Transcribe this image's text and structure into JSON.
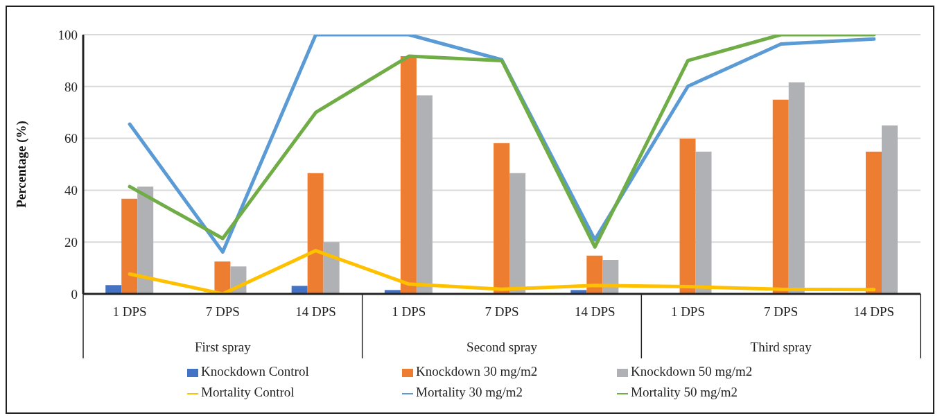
{
  "chart_data": {
    "type": "bar",
    "ylabel": "Percentage (%)",
    "categories": [
      "1 DPS",
      "7 DPS",
      "14 DPS",
      "1 DPS",
      "7 DPS",
      "14 DPS",
      "1 DPS",
      "7 DPS",
      "14 DPS"
    ],
    "annotations": [
      "First spray",
      "Second spray",
      "Third spray"
    ],
    "series": [
      {
        "name": "Knockdown Control",
        "color": "#4472c4",
        "values": [
          3.4,
          0,
          3.1,
          1.5,
          0,
          1.5,
          0,
          0,
          0
        ]
      },
      {
        "name": "Knockdown 30 mg/m2",
        "color": "#ed7d31",
        "values": [
          36.7,
          12.5,
          46.6,
          91.7,
          58.2,
          14.8,
          59.9,
          74.9,
          54.9
        ]
      },
      {
        "name": "Knockdown 50 mg/m2",
        "color": "#b0b1b4",
        "values": [
          41.4,
          10.6,
          20,
          76.6,
          46.6,
          13.1,
          54.9,
          81.6,
          65
        ]
      },
      {
        "name": "Mortality Control",
        "type": "line",
        "color": "#ffc000",
        "values": [
          7.7,
          0,
          16.7,
          3.8,
          1.8,
          3.3,
          2.8,
          1.8,
          1.7
        ]
      },
      {
        "name": "Mortality 30 mg/m2",
        "type": "line",
        "color": "#5b9bd5",
        "values": [
          65.5,
          16.2,
          100,
          100,
          90.3,
          20.9,
          80.1,
          96.4,
          98.3
        ]
      },
      {
        "name": "Mortality 50 mg/m2",
        "type": "line",
        "color": "#70ad47",
        "values": [
          41.4,
          21.4,
          70,
          91.7,
          90,
          18.1,
          90,
          100,
          100
        ]
      }
    ],
    "ylim": [
      0,
      100
    ],
    "yticks": [
      0,
      20,
      40,
      60,
      80,
      100
    ],
    "grid": "y",
    "legend": "bottom",
    "marker": "none",
    "line_style": "solid"
  }
}
